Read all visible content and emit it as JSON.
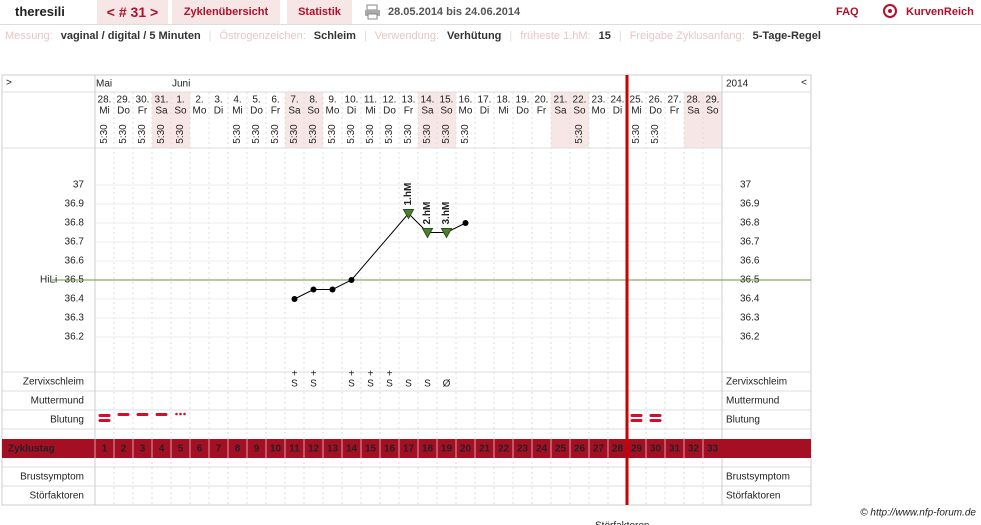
{
  "header": {
    "user": "theresili",
    "cycle_nav": "< # 31 >",
    "tabs": [
      "Zyklenübersicht",
      "Statistik"
    ],
    "period": "28.05.2014 bis 24.06.2014",
    "faq": "FAQ",
    "logo": "KurvenReich"
  },
  "settings": [
    {
      "label": "Messung:",
      "value": "vaginal / digital / 5 Minuten"
    },
    {
      "label": "Östrogenzeichen:",
      "value": "Schleim"
    },
    {
      "label": "Verwendung:",
      "value": "Verhütung"
    },
    {
      "label": "früheste 1.hM:",
      "value": "15"
    },
    {
      "label": "Freigabe Zyklusanfang:",
      "value": "5-Tage-Regel"
    }
  ],
  "chart_data": {
    "type": "line",
    "nav_left": ">",
    "nav_right": "<",
    "year": "2014",
    "months": [
      "Mai",
      null,
      null,
      null,
      "Juni",
      null,
      null,
      null,
      null,
      null,
      null,
      null,
      null,
      null,
      null,
      null,
      null,
      null,
      null,
      null,
      null,
      null,
      null,
      null,
      null,
      null,
      null,
      null,
      null,
      null,
      null,
      null,
      null
    ],
    "days": [
      "28.",
      "29.",
      "30.",
      "31.",
      "1.",
      "2.",
      "3.",
      "4.",
      "5.",
      "6.",
      "7.",
      "8.",
      "9.",
      "10.",
      "11.",
      "12.",
      "13.",
      "14.",
      "15.",
      "16.",
      "17.",
      "18.",
      "19.",
      "20.",
      "21.",
      "22.",
      "23.",
      "24.",
      "25.",
      "26.",
      "27.",
      "28.",
      "29."
    ],
    "weekdays": [
      "Mi",
      "Do",
      "Fr",
      "Sa",
      "So",
      "Mo",
      "Di",
      "Mi",
      "Do",
      "Fr",
      "Sa",
      "So",
      "Mo",
      "Di",
      "Mi",
      "Do",
      "Fr",
      "Sa",
      "So",
      "Mo",
      "Di",
      "Mi",
      "Do",
      "Fr",
      "Sa",
      "So",
      "Mo",
      "Di",
      "Mi",
      "Do",
      "Fr",
      "Sa",
      "So"
    ],
    "times": [
      "5:30",
      "5:30",
      "5:30",
      "5:30",
      "5:30",
      null,
      null,
      "5:30",
      "5:30",
      "5:30",
      "5:30",
      "5:30",
      "5:30",
      "5:30",
      "5:30",
      "5:30",
      "5:30",
      "5:30",
      "5:30",
      "5:30",
      null,
      null,
      null,
      null,
      null,
      "5:30",
      null,
      null,
      "5:30",
      "5:30",
      null,
      null,
      null
    ],
    "shaded": [
      false,
      false,
      false,
      true,
      true,
      false,
      false,
      false,
      false,
      false,
      true,
      true,
      false,
      false,
      false,
      false,
      false,
      true,
      true,
      false,
      false,
      false,
      false,
      false,
      true,
      true,
      false,
      false,
      false,
      false,
      false,
      true,
      true
    ],
    "cycle_days": [
      1,
      2,
      3,
      4,
      5,
      6,
      7,
      8,
      9,
      10,
      11,
      12,
      13,
      14,
      15,
      16,
      17,
      18,
      19,
      20,
      21,
      22,
      23,
      24,
      25,
      26,
      27,
      28,
      29,
      30,
      31,
      32,
      33
    ],
    "cycle_day_label": "Zyklustag",
    "xlim": [
      0.5,
      33.5
    ],
    "x": [
      11,
      12,
      13,
      14,
      17,
      18,
      19,
      20
    ],
    "values": [
      36.4,
      36.45,
      36.45,
      36.5,
      36.85,
      36.75,
      36.75,
      36.8
    ],
    "color": "#000000",
    "ylim": [
      36.1,
      37.2
    ],
    "yticks": [
      36.2,
      36.3,
      36.4,
      36.5,
      36.6,
      36.7,
      36.8,
      36.9,
      37
    ],
    "coverline": {
      "label": "HiLi",
      "value": 36.5,
      "color": "#6a9a3a"
    },
    "annotations": [
      {
        "text": "1.hM",
        "point": 4
      },
      {
        "text": "2.hM",
        "point": 5
      },
      {
        "text": "3.hM",
        "point": 6
      }
    ],
    "annotation_color": "#4f7f2f",
    "cycle_end": 28,
    "mucus": {
      "label": "Zervixschleim",
      "color": "#e08a1a",
      "values": [
        null,
        null,
        null,
        null,
        null,
        null,
        null,
        null,
        null,
        null,
        {
          "text": "S",
          "mark": "+"
        },
        {
          "text": "S",
          "mark": "+"
        },
        null,
        {
          "text": "S",
          "mark": "+"
        },
        {
          "text": "S",
          "mark": "+"
        },
        {
          "text": "S",
          "mark": "+"
        },
        {
          "text": "S"
        },
        {
          "text": "S"
        },
        {
          "text": "Ø"
        },
        null,
        null,
        null,
        null,
        null,
        null,
        null,
        null,
        null,
        null,
        null,
        null,
        null,
        null
      ]
    },
    "cervix": {
      "label": "Muttermund",
      "color": "#4a62c8"
    },
    "bleeding": {
      "label": "Blutung",
      "color": "#d0102a",
      "values": [
        "heavy",
        "medium",
        "medium",
        "medium",
        "spotting",
        null,
        null,
        null,
        null,
        null,
        null,
        null,
        null,
        null,
        null,
        null,
        null,
        null,
        null,
        null,
        null,
        null,
        null,
        null,
        null,
        null,
        null,
        null,
        "heavy",
        "heavy",
        null,
        null,
        null
      ]
    },
    "extra_rows": [
      "Brustsymptom",
      "Störfaktoren"
    ]
  },
  "footer": {
    "copyright": "© http://www.nfp-forum.de",
    "cut_text": "Störfaktoren"
  }
}
